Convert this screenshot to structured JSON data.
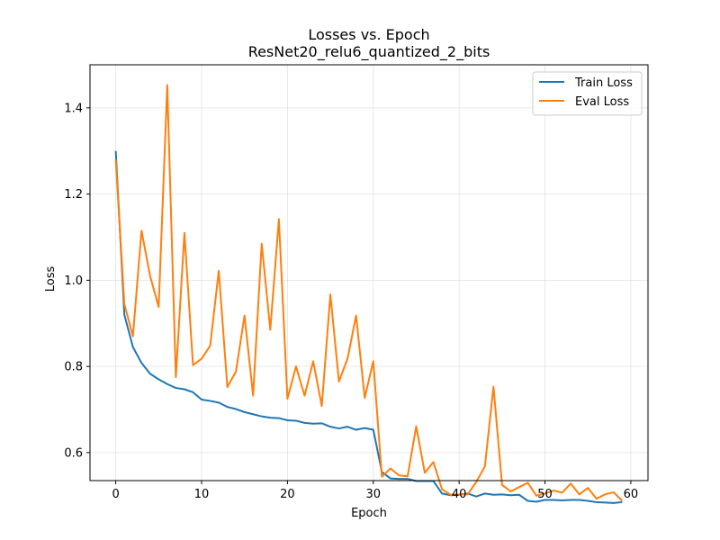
{
  "chart_data": {
    "type": "line",
    "title": "Losses vs. Epoch",
    "subtitle": "ResNet20_relu6_quantized_2_bits",
    "xlabel": "Epoch",
    "ylabel": "Loss",
    "xlim": [
      -3,
      62
    ],
    "ylim": [
      0.535,
      1.5
    ],
    "xticks": [
      0,
      10,
      20,
      30,
      40,
      50,
      60
    ],
    "yticks": [
      0.6,
      0.8,
      1.0,
      1.2,
      1.4
    ],
    "ytick_labels": [
      "0.6",
      "0.8",
      "1.0",
      "1.2",
      "1.4"
    ],
    "grid": true,
    "legend_position": "top-right",
    "series": [
      {
        "name": "Train Loss",
        "color": "#1f77b4",
        "values": [
          1.3,
          0.92,
          0.845,
          0.808,
          0.783,
          0.77,
          0.759,
          0.75,
          0.747,
          0.74,
          0.723,
          0.72,
          0.716,
          0.706,
          0.701,
          0.694,
          0.689,
          0.684,
          0.681,
          0.68,
          0.675,
          0.674,
          0.669,
          0.667,
          0.668,
          0.66,
          0.656,
          0.66,
          0.653,
          0.657,
          0.653,
          0.555,
          0.54,
          0.539,
          0.539,
          0.534,
          0.534,
          0.534,
          0.505,
          0.501,
          0.502,
          0.505,
          0.498,
          0.505,
          0.502,
          0.503,
          0.501,
          0.502,
          0.488,
          0.486,
          0.49,
          0.49,
          0.489,
          0.49,
          0.49,
          0.488,
          0.485,
          0.484,
          0.483,
          0.485
        ]
      },
      {
        "name": "Eval Loss",
        "color": "#ff7f0e",
        "values": [
          1.28,
          0.945,
          0.87,
          1.115,
          1.01,
          0.938,
          1.453,
          0.775,
          1.11,
          0.803,
          0.818,
          0.848,
          1.022,
          0.752,
          0.788,
          0.918,
          0.732,
          1.085,
          0.885,
          1.142,
          0.725,
          0.8,
          0.732,
          0.812,
          0.708,
          0.967,
          0.765,
          0.818,
          0.918,
          0.727,
          0.812,
          0.544,
          0.563,
          0.547,
          0.545,
          0.661,
          0.553,
          0.578,
          0.515,
          0.502,
          0.503,
          0.503,
          0.532,
          0.568,
          0.753,
          0.525,
          0.51,
          0.52,
          0.53,
          0.5,
          0.505,
          0.512,
          0.507,
          0.528,
          0.503,
          0.518,
          0.493,
          0.503,
          0.508,
          0.488
        ]
      }
    ]
  }
}
